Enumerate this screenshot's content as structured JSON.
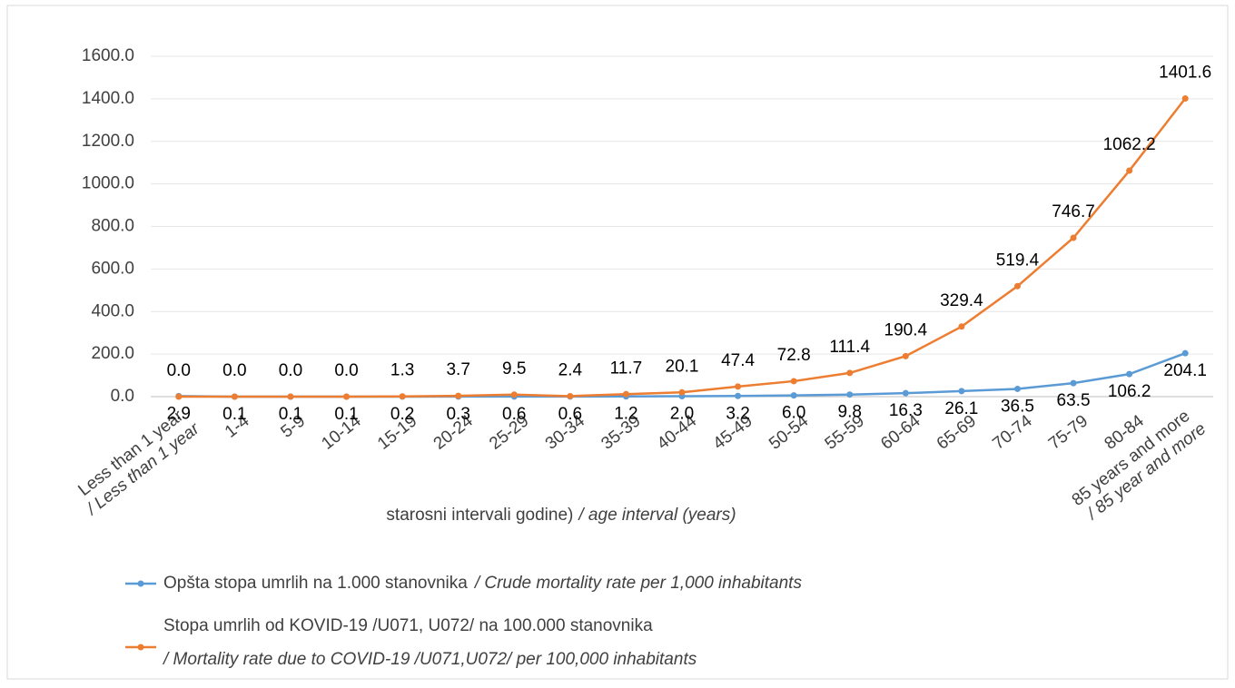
{
  "chart_data": {
    "type": "line",
    "categories": [
      "Less than 1 year / Less than 1 year",
      "1-4",
      "5-9",
      "10-14",
      "15-19",
      "20-24",
      "25-29",
      "30-34",
      "35-39",
      "40-44",
      "45-49",
      "50-54",
      "55-59",
      "60-64",
      "65-69",
      "70-74",
      "75-79",
      "80-84",
      "85 years and more / 85 year and more"
    ],
    "series": [
      {
        "name": "Opšta stopa umrlih na 1.000 stanovnika",
        "name_en": "/ Crude mortality rate per 1,000 inhabitants",
        "color": "#5b9bd5",
        "values": [
          2.9,
          0.1,
          0.1,
          0.1,
          0.2,
          0.3,
          0.6,
          0.6,
          1.2,
          2.0,
          3.2,
          6.0,
          9.8,
          16.3,
          26.1,
          36.5,
          63.5,
          106.2,
          204.1
        ],
        "value_labels": [
          "2.9",
          "0.1",
          "0.1",
          "0.1",
          "0.2",
          "0.3",
          "0.6",
          "0.6",
          "1.2",
          "2.0",
          "3.2",
          "6.0",
          "9.8",
          "16.3",
          "26.1",
          "36.5",
          "63.5",
          "106.2",
          "204.1"
        ]
      },
      {
        "name": "Stopa umrlih od KOVID-19 /U071, U072/  na 100.000 stanovnika",
        "name_en": "/ Mortality rate due to COVID-19 /U071,U072/ per 100,000 inhabitants",
        "color": "#ed7d31",
        "values": [
          0.0,
          0.0,
          0.0,
          0.0,
          1.3,
          3.7,
          9.5,
          2.4,
          11.7,
          20.1,
          47.4,
          72.8,
          111.4,
          190.4,
          329.4,
          519.4,
          746.7,
          1062.2,
          1401.6
        ],
        "value_labels": [
          "0.0",
          "0.0",
          "0.0",
          "0.0",
          "1.3",
          "3.7",
          "9.5",
          "2.4",
          "11.7",
          "20.1",
          "47.4",
          "72.8",
          "111.4",
          "190.4",
          "329.4",
          "519.4",
          "746.7",
          "1062.2",
          "1401.6"
        ]
      }
    ],
    "xlabel": "starosni intervali  godine)",
    "xlabel_en": "/ age interval (years)",
    "ylim": [
      0,
      1600
    ],
    "yticks": [
      {
        "value": 0,
        "label": "0.0"
      },
      {
        "value": 200,
        "label": "200.0"
      },
      {
        "value": 400,
        "label": "400.0"
      },
      {
        "value": 600,
        "label": "600.0"
      },
      {
        "value": 800,
        "label": "800.0"
      },
      {
        "value": 1000,
        "label": "1000.0"
      },
      {
        "value": 1200,
        "label": "1200.0"
      },
      {
        "value": 1400,
        "label": "1400.0"
      },
      {
        "value": 1600,
        "label": "1600.0"
      }
    ],
    "grid": true
  }
}
